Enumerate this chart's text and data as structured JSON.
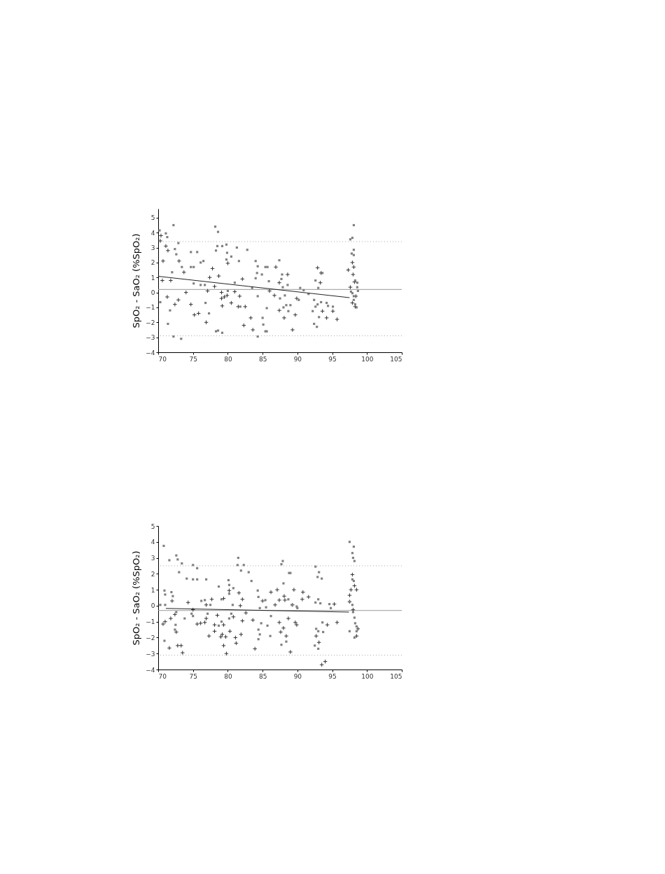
{
  "chart_data": [
    {
      "type": "scatter",
      "ylabel": "SpO₂ - SaO₂ (%SpO₂)",
      "xlim": [
        70,
        105
      ],
      "xticks": [
        70,
        75,
        80,
        85,
        90,
        95,
        100,
        105
      ],
      "ylim": [
        -4,
        5.6
      ],
      "yticks": [
        -4,
        -3,
        -2,
        -1,
        0,
        1,
        2,
        3,
        4,
        5
      ],
      "ref_lines": [
        {
          "axis": "y",
          "value": 0.2,
          "color": "#999999",
          "line_style": "solid"
        },
        {
          "axis": "y",
          "value": 3.4,
          "color": "#aaaaaa",
          "line_style": "dotted"
        },
        {
          "axis": "y",
          "value": -2.9,
          "color": "#aaaaaa",
          "line_style": "dotted"
        }
      ],
      "series": [
        {
          "type": "scatter",
          "marker": "cross",
          "color": "#333333",
          "x": [
            70.4,
            70.3,
            70.7,
            71.1,
            71.4,
            70.6,
            71.8,
            71.3,
            72.4,
            72.9,
            73.0,
            73.7,
            74.0,
            74.7,
            75.2,
            75.8,
            76.9,
            77.1,
            77.8,
            77.4,
            78.1,
            78.7,
            79.1,
            79.1,
            79.2,
            79.5,
            79.9,
            80.0,
            80.5,
            81.0,
            81.5,
            81.7,
            82.5,
            82.1,
            82.3,
            83.3,
            83.6,
            86.0,
            86.9,
            88.6,
            87.4,
            86.7,
            87.4,
            88.1,
            89.3,
            89.7,
            89.9,
            92.9,
            93.4,
            93.3,
            93.6,
            94.2,
            95.1,
            95.7,
            97.3,
            97.9,
            98.1,
            98.0,
            98.2,
            98.4,
            97.9,
            97.6,
            98.3
          ],
          "values": [
            3.8,
            3.45,
            2.1,
            3.1,
            2.8,
            0.8,
            0.8,
            -0.3,
            -0.8,
            -0.5,
            2.1,
            1.35,
            0,
            -0.8,
            -1.5,
            -1.4,
            -2.0,
            0.1,
            1.6,
            1.0,
            0.4,
            1.1,
            0,
            -0.4,
            -0.9,
            -0.3,
            -0.2,
            1.95,
            -0.7,
            0.05,
            -0.95,
            -0.25,
            -0.95,
            0.9,
            -2.2,
            -1.7,
            -2.5,
            0.1,
            1.7,
            1.2,
            0.65,
            -0.2,
            -1.2,
            -1.7,
            -2.5,
            -1.5,
            -0.4,
            1.65,
            1.3,
            0.65,
            -1.25,
            -1.7,
            -1.25,
            -1.8,
            1.5,
            2.0,
            1.7,
            1.2,
            0.7,
            -0.25,
            -0.7,
            0.35,
            -0.95
          ]
        },
        {
          "type": "scatter",
          "marker": "square",
          "color": "#808080",
          "x": [
            70.2,
            72.2,
            71.1,
            71.3,
            72.4,
            72.9,
            72.6,
            72.0,
            70.3,
            71.7,
            71.4,
            72.2,
            73.3,
            74.7,
            74.7,
            75.1,
            75.6,
            76.1,
            76.5,
            76.1,
            76.7,
            78.2,
            78.6,
            78.5,
            79.2,
            79.8,
            79.9,
            79.8,
            78.3,
            78.3,
            79.2,
            78.6,
            80.5,
            81.3,
            81.6,
            82.8,
            84.0,
            84.2,
            84.3,
            85.4,
            84.9,
            84.0,
            83.5,
            84.3,
            85.6,
            85.0,
            85.1,
            84.3,
            85.4,
            81.8,
            80.0,
            76.8,
            77.3,
            81.0,
            75.1,
            73.4,
            85.7,
            87.4,
            87.8,
            87.7,
            85.9,
            88.6,
            87.9,
            90.4,
            90.9,
            91.6,
            90.2,
            88.2,
            87.5,
            88.4,
            88.0,
            88.7,
            89.0,
            85.6,
            92.6,
            93.0,
            93.6,
            92.4,
            92.6,
            92.2,
            93.4,
            92.9,
            94.2,
            94.4,
            95.1,
            93.1,
            92.4,
            92.8,
            98.1,
            97.6,
            97.9,
            98.1,
            97.8,
            98.1,
            98.3,
            98.6,
            98.6,
            98.7,
            98.1,
            98.1,
            98.3,
            98.5,
            97.7,
            97.9
          ],
          "values": [
            4.15,
            4.5,
            3.95,
            3.7,
            2.9,
            3.3,
            2.55,
            1.35,
            -0.65,
            -1.2,
            -2.1,
            -2.95,
            -3.1,
            2.7,
            1.7,
            1.7,
            2.7,
            2.0,
            2.1,
            0.5,
            0.5,
            4.4,
            4.05,
            3.1,
            3.1,
            3.2,
            2.65,
            2.2,
            2.8,
            -2.6,
            -2.7,
            -2.55,
            2.4,
            3.0,
            2.1,
            2.85,
            2.1,
            1.3,
            1.75,
            1.7,
            1.2,
            0.95,
            0.3,
            -0.25,
            -1.05,
            -1.7,
            -2.15,
            -2.95,
            -2.6,
            -0.95,
            0.1,
            -0.7,
            -1.4,
            0.65,
            0.6,
            1.7,
            1.7,
            2.15,
            1.2,
            0.9,
            0.75,
            0.5,
            0.35,
            0.3,
            0.15,
            -0.1,
            -0.5,
            -0.2,
            -0.4,
            -0.85,
            -1.0,
            -1.25,
            -0.85,
            -2.6,
            0.8,
            0.3,
            1.3,
            -0.5,
            -0.95,
            -1.25,
            -0.65,
            -0.8,
            -0.7,
            -0.9,
            -0.95,
            -1.65,
            -2.1,
            -2.3,
            4.5,
            3.55,
            3.65,
            2.85,
            2.6,
            2.5,
            0.8,
            0.65,
            0.35,
            0.1,
            -0.25,
            -0.5,
            -0.8,
            -1.0,
            0.05,
            -0.05
          ]
        },
        {
          "type": "line",
          "color": "#222222",
          "x": [
            70,
            97.5
          ],
          "values": [
            1.08,
            -0.35
          ]
        }
      ]
    },
    {
      "type": "scatter",
      "ylabel": "SpO₂ - SaO₂ (%SpO₂)",
      "xlim": [
        70,
        105
      ],
      "xticks": [
        70,
        75,
        80,
        85,
        90,
        95,
        100,
        105
      ],
      "ylim": [
        -4,
        5
      ],
      "yticks": [
        -4,
        -3,
        -2,
        -1,
        0,
        1,
        2,
        3,
        4,
        5
      ],
      "ref_lines": [
        {
          "axis": "y",
          "value": -0.3,
          "color": "#999999",
          "line_style": "solid"
        },
        {
          "axis": "y",
          "value": 2.5,
          "color": "#aaaaaa",
          "line_style": "dotted"
        },
        {
          "axis": "y",
          "value": -3.1,
          "color": "#aaaaaa",
          "line_style": "dotted"
        }
      ],
      "series": [
        {
          "type": "scatter",
          "marker": "cross",
          "color": "#333333",
          "x": [
            71.0,
            70.7,
            71.6,
            72.8,
            73.3,
            73.5,
            72.0,
            72.4,
            71.8,
            72.6,
            74.3,
            75.0,
            75.6,
            76.1,
            76.7,
            76.9,
            76.9,
            77.3,
            77.7,
            78.1,
            78.1,
            78.5,
            79.0,
            79.2,
            79.4,
            79.4,
            79.7,
            79.8,
            79.4,
            80.2,
            80.3,
            80.8,
            81.1,
            81.2,
            81.6,
            81.8,
            81.9,
            82.1,
            82.1,
            82.6,
            83.6,
            83.9,
            85.0,
            86.2,
            87.1,
            86.8,
            87.4,
            88.1,
            88.2,
            87.4,
            87.6,
            88.0,
            88.7,
            88.4,
            89.0,
            89.5,
            89.3,
            89.7,
            89.9,
            90.8,
            90.7,
            91.6,
            92.7,
            93.1,
            94.3,
            95.3,
            95.7,
            97.9,
            98.2,
            98.5,
            97.7,
            97.5,
            97.5,
            98.0,
            98.7,
            98.5,
            93.5,
            94.0
          ],
          "values": [
            -1.0,
            -1.15,
            -2.65,
            -2.5,
            -2.5,
            -2.95,
            0.3,
            -0.55,
            -0.8,
            -1.65,
            0.2,
            -0.25,
            -1.15,
            -1.1,
            -1.05,
            0.05,
            -0.8,
            -1.9,
            0.4,
            -1.2,
            -1.6,
            -0.6,
            -1.95,
            -1.8,
            -1.2,
            -2.5,
            -1.95,
            -3.0,
            0.45,
            0.95,
            -1.6,
            -0.7,
            -2.0,
            -2.35,
            0.8,
            0,
            -1.8,
            -0.95,
            0.4,
            -0.45,
            -0.9,
            -2.7,
            0.3,
            0.85,
            1.0,
            0.05,
            0.35,
            0.6,
            0.35,
            -1.05,
            -1.65,
            -1.4,
            -0.8,
            -1.9,
            -2.9,
            1.0,
            0.05,
            -1.05,
            -1.2,
            0.85,
            0.4,
            0.55,
            -1.9,
            -2.3,
            -1.2,
            0.1,
            -1.05,
            1.95,
            1.25,
            1.0,
            1.0,
            0.65,
            0.25,
            -0.25,
            -1.45,
            -1.9,
            -3.7,
            -3.5
          ]
        },
        {
          "type": "scatter",
          "marker": "square",
          "color": "#808080",
          "x": [
            70.8,
            71.6,
            72.6,
            72.8,
            73.0,
            73.4,
            74.1,
            75.0,
            75.6,
            75.0,
            75.6,
            76.9,
            70.9,
            71.0,
            71.9,
            72.1,
            70.3,
            71.0,
            72.6,
            72.5,
            72.4,
            70.9,
            73.8,
            74.8,
            75.0,
            76.2,
            76.7,
            77.1,
            77.5,
            78.7,
            79.1,
            80.1,
            80.2,
            80.2,
            80.8,
            80.7,
            80.5,
            80.2,
            81.5,
            81.4,
            81.9,
            82.3,
            83.0,
            83.4,
            79.1,
            78.7,
            84.3,
            84.4,
            84.6,
            84.8,
            84.4,
            84.6,
            84.4,
            87.9,
            87.7,
            88.8,
            89.0,
            88.0,
            88.7,
            90.0,
            89.9,
            89.2,
            85.4,
            85.5,
            86.2,
            85.7,
            86.1,
            87.7,
            88.4,
            92.6,
            93.1,
            92.9,
            93.5,
            93.0,
            92.6,
            93.3,
            94.6,
            94.8,
            93.6,
            92.7,
            93.0,
            93.7,
            92.5,
            93.0,
            97.5,
            98.1,
            97.9,
            98.0,
            98.2,
            97.9,
            98.1,
            97.5,
            97.9,
            98.0,
            98.2,
            98.3,
            98.5,
            98.5,
            98.2,
            97.5
          ],
          "values": [
            3.75,
            2.85,
            3.15,
            2.9,
            2.1,
            2.65,
            1.7,
            2.55,
            2.35,
            1.65,
            1.65,
            1.65,
            0.95,
            0.7,
            0.85,
            0.6,
            0.05,
            0.05,
            -0.4,
            -1.2,
            -1.5,
            -2.2,
            -0.8,
            -0.5,
            -0.65,
            0.3,
            0.35,
            -0.5,
            0.05,
            1.2,
            0.4,
            1.6,
            1.3,
            0.75,
            1.1,
            0.05,
            -0.5,
            -0.8,
            3.0,
            2.55,
            2.2,
            2.55,
            2.1,
            1.55,
            -1.0,
            -1.25,
            0.95,
            0.55,
            -0.15,
            -1.1,
            -1.5,
            -1.8,
            -2.1,
            2.8,
            2.6,
            2.05,
            2.05,
            1.4,
            0.4,
            -0.15,
            -0.05,
            0.05,
            0.35,
            -0.1,
            -0.65,
            -1.25,
            -1.9,
            -2.45,
            -2.25,
            2.45,
            2.1,
            1.8,
            1.7,
            0.4,
            0.2,
            0.15,
            0.1,
            -0.15,
            -1.05,
            -1.45,
            -1.6,
            -1.65,
            -2.5,
            -2.7,
            4.0,
            3.7,
            3.3,
            3.0,
            2.8,
            1.65,
            1.55,
            0.25,
            0.05,
            -0.4,
            -0.75,
            -1.1,
            -1.3,
            -1.6,
            -2.0,
            -1.6
          ]
        },
        {
          "type": "line",
          "color": "#222222",
          "x": [
            71.1,
            97.4
          ],
          "values": [
            -0.17,
            -0.4
          ]
        }
      ]
    }
  ]
}
